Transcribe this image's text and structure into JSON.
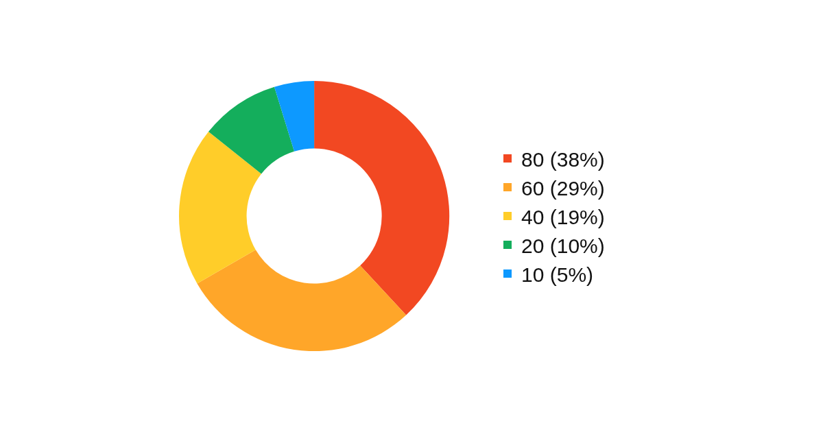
{
  "chart_data": {
    "type": "donut",
    "categories": [
      "80 (38%)",
      "60 (29%)",
      "40 (19%)",
      "20 (10%)",
      "10 (5%)"
    ],
    "values": [
      80,
      60,
      40,
      20,
      10
    ],
    "colors": [
      "#f24822",
      "#ffa629",
      "#ffcd29",
      "#14ae5c",
      "#0d99ff"
    ],
    "legend": "right"
  }
}
